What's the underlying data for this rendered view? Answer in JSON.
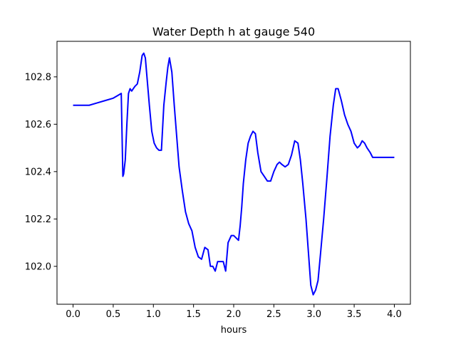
{
  "chart_data": {
    "type": "line",
    "title": "Water Depth h at gauge 540",
    "xlabel": "hours",
    "ylabel": "",
    "xlim": [
      -0.2,
      4.2
    ],
    "ylim": [
      101.84,
      102.95
    ],
    "xticks": [
      0.0,
      0.5,
      1.0,
      1.5,
      2.0,
      2.5,
      3.0,
      3.5,
      4.0
    ],
    "xtick_labels": [
      "0.0",
      "0.5",
      "1.0",
      "1.5",
      "2.0",
      "2.5",
      "3.0",
      "3.5",
      "4.0"
    ],
    "yticks": [
      102.0,
      102.2,
      102.4,
      102.6,
      102.8
    ],
    "ytick_labels": [
      "102.0",
      "102.2",
      "102.4",
      "102.6",
      "102.8"
    ],
    "grid": false,
    "series": [
      {
        "color": "#0000ff",
        "x": [
          0.0,
          0.1,
          0.2,
          0.3,
          0.4,
          0.5,
          0.55,
          0.6,
          0.62,
          0.63,
          0.65,
          0.67,
          0.69,
          0.71,
          0.73,
          0.75,
          0.77,
          0.8,
          0.83,
          0.86,
          0.88,
          0.9,
          0.92,
          0.95,
          0.98,
          1.01,
          1.04,
          1.07,
          1.1,
          1.13,
          1.16,
          1.18,
          1.2,
          1.23,
          1.26,
          1.29,
          1.32,
          1.36,
          1.4,
          1.44,
          1.48,
          1.52,
          1.56,
          1.6,
          1.64,
          1.68,
          1.71,
          1.74,
          1.77,
          1.8,
          1.83,
          1.87,
          1.9,
          1.93,
          1.97,
          2.0,
          2.03,
          2.06,
          2.08,
          2.1,
          2.12,
          2.15,
          2.18,
          2.21,
          2.24,
          2.27,
          2.3,
          2.34,
          2.38,
          2.42,
          2.46,
          2.5,
          2.54,
          2.57,
          2.6,
          2.64,
          2.68,
          2.72,
          2.76,
          2.8,
          2.83,
          2.86,
          2.9,
          2.93,
          2.96,
          2.99,
          3.02,
          3.05,
          3.08,
          3.12,
          3.16,
          3.2,
          3.24,
          3.27,
          3.3,
          3.34,
          3.38,
          3.42,
          3.46,
          3.5,
          3.54,
          3.57,
          3.6,
          3.63,
          3.66,
          3.7,
          3.73,
          3.76,
          3.8,
          3.84,
          3.88,
          3.91,
          3.94,
          3.97,
          4.0
        ],
        "y": [
          102.68,
          102.68,
          102.68,
          102.69,
          102.7,
          102.71,
          102.72,
          102.73,
          102.38,
          102.39,
          102.45,
          102.6,
          102.73,
          102.75,
          102.74,
          102.75,
          102.76,
          102.77,
          102.82,
          102.89,
          102.9,
          102.88,
          102.8,
          102.68,
          102.57,
          102.52,
          102.5,
          102.49,
          102.49,
          102.68,
          102.78,
          102.84,
          102.88,
          102.82,
          102.68,
          102.55,
          102.42,
          102.32,
          102.23,
          102.18,
          102.15,
          102.08,
          102.04,
          102.03,
          102.08,
          102.07,
          102.0,
          102.0,
          101.98,
          102.02,
          102.02,
          102.02,
          101.98,
          102.1,
          102.13,
          102.13,
          102.12,
          102.11,
          102.17,
          102.25,
          102.35,
          102.45,
          102.52,
          102.55,
          102.57,
          102.56,
          102.48,
          102.4,
          102.38,
          102.36,
          102.36,
          102.4,
          102.43,
          102.44,
          102.43,
          102.42,
          102.43,
          102.47,
          102.53,
          102.52,
          102.45,
          102.35,
          102.2,
          102.06,
          101.92,
          101.88,
          101.9,
          101.94,
          102.05,
          102.2,
          102.37,
          102.55,
          102.68,
          102.75,
          102.75,
          102.7,
          102.64,
          102.6,
          102.57,
          102.52,
          102.5,
          102.51,
          102.53,
          102.52,
          102.5,
          102.48,
          102.46,
          102.46,
          102.46,
          102.46,
          102.46,
          102.46,
          102.46,
          102.46,
          102.46
        ]
      }
    ]
  }
}
